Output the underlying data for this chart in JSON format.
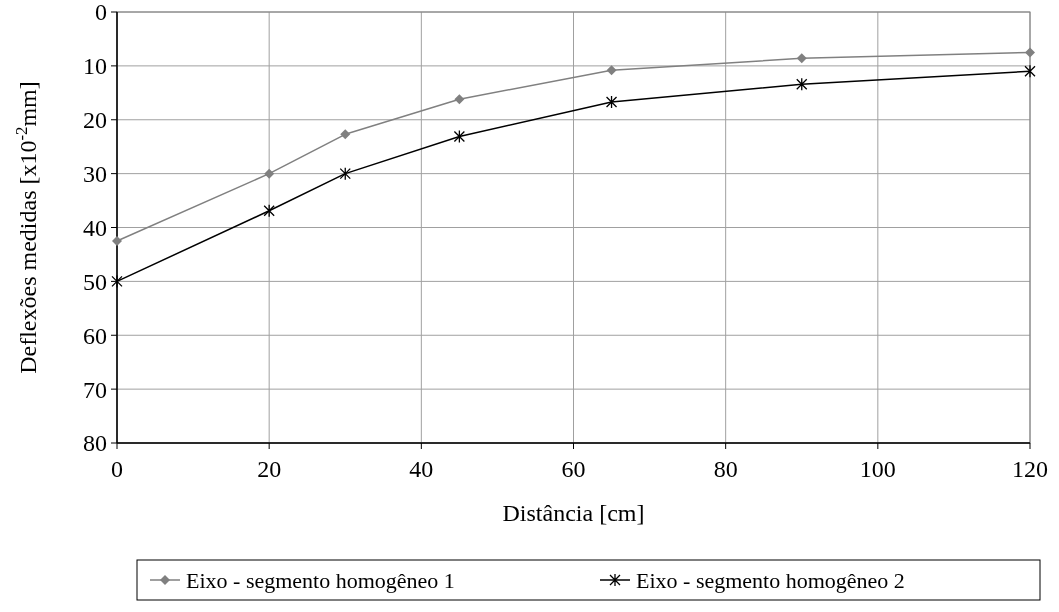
{
  "chart_data": {
    "type": "line",
    "xlabel": "Distância [cm]",
    "ylabel": "Deflexões medidas [x10$^{-2}$mm]",
    "x": [
      0,
      20,
      30,
      45,
      65,
      90,
      120
    ],
    "series": [
      {
        "name": "Eixo - segmento homogêneo 1",
        "color": "#808080",
        "marker": "diamond",
        "values": [
          42.5,
          30.0,
          22.7,
          16.2,
          10.8,
          8.6,
          7.5
        ]
      },
      {
        "name": "Eixo - segmento homogêneo 2",
        "color": "#000000",
        "marker": "cross",
        "values": [
          50.0,
          36.9,
          30.0,
          23.1,
          16.7,
          13.4,
          11.0
        ]
      }
    ],
    "xlim": [
      0,
      120
    ],
    "xticks": [
      0,
      20,
      40,
      60,
      80,
      100,
      120
    ],
    "ylim": [
      80,
      0
    ],
    "yticks": [
      0,
      10,
      20,
      30,
      40,
      50,
      60,
      70,
      80
    ],
    "grid": true,
    "legend": "bottom",
    "line_style": "solid"
  }
}
